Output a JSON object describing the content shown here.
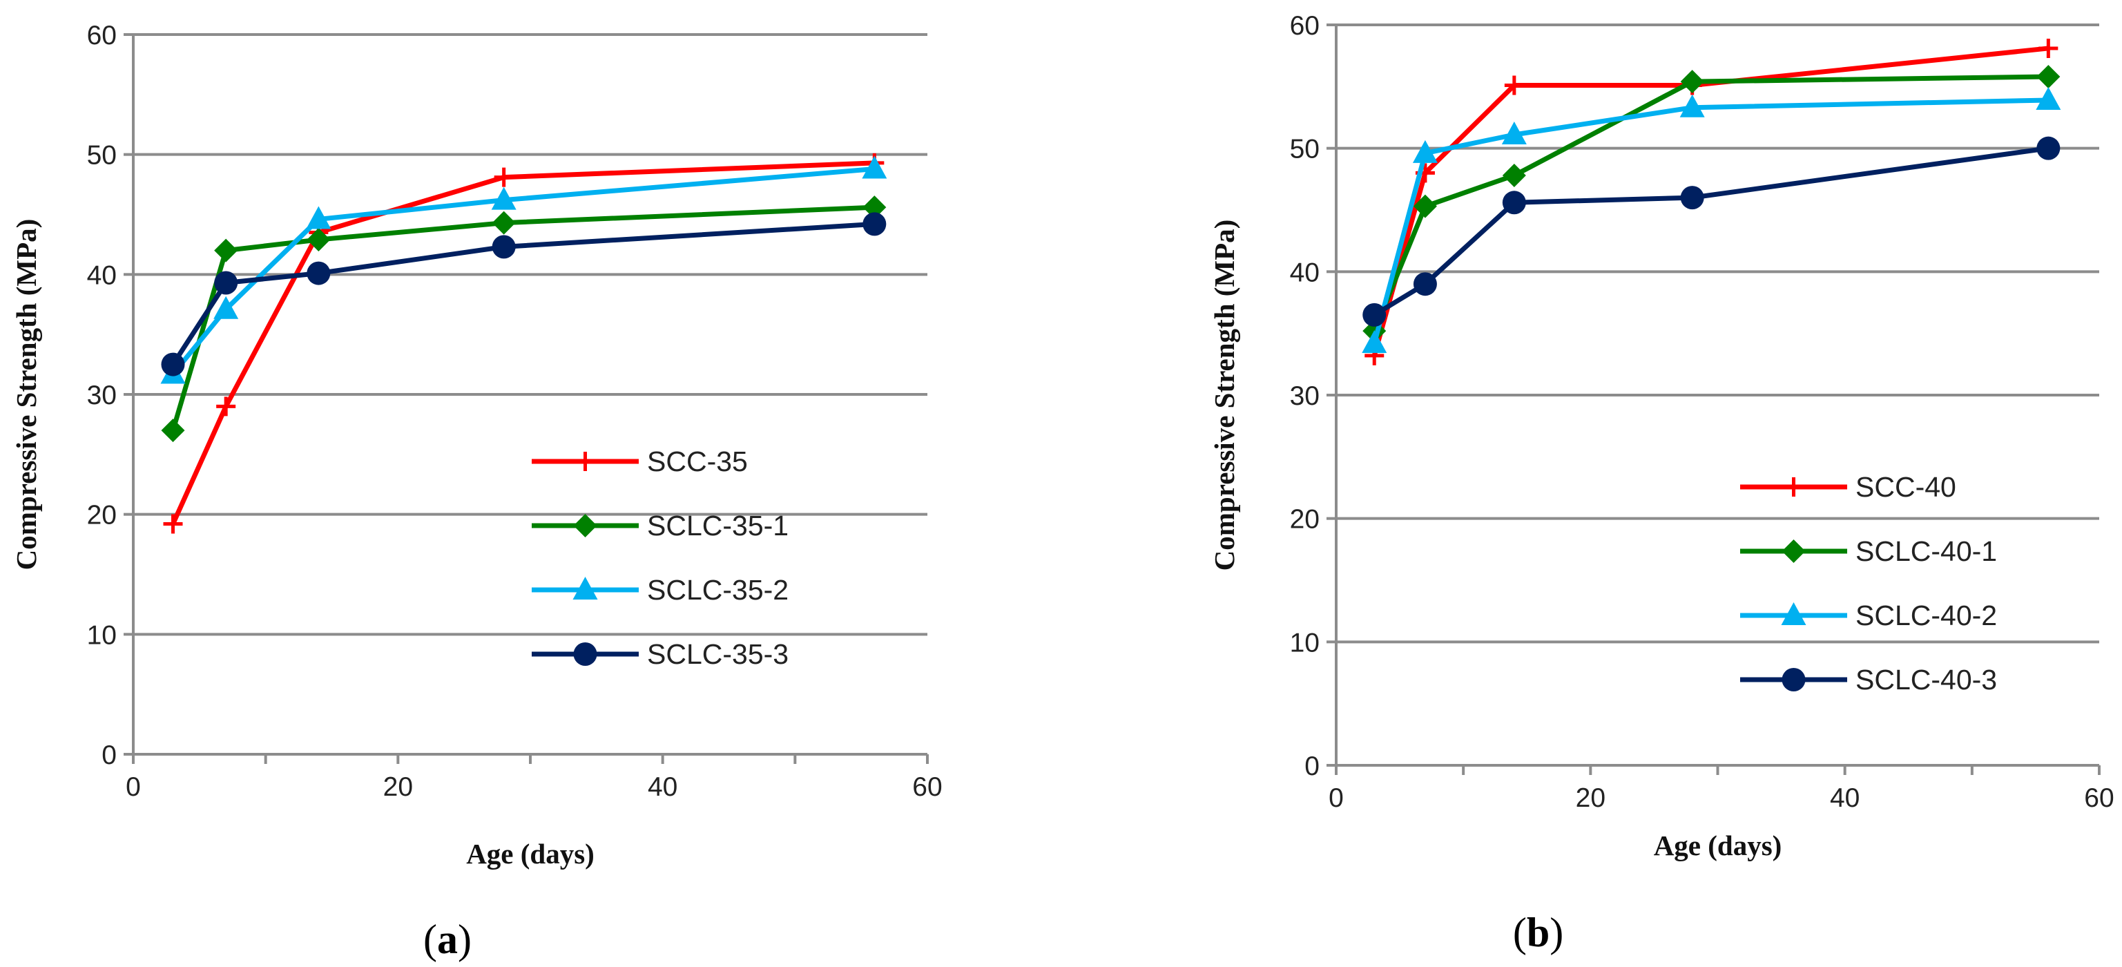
{
  "chart_data": [
    {
      "type": "line",
      "panel_label": "a",
      "title": "",
      "xlabel": "Age (days)",
      "ylabel": "Compressive Strength (MPa)",
      "xlim": [
        0,
        60
      ],
      "ylim": [
        0,
        60
      ],
      "xticks": [
        0,
        20,
        40,
        60
      ],
      "yticks": [
        0,
        10,
        20,
        30,
        40,
        50,
        60
      ],
      "x_minor_step": 10,
      "grid": "horizontal",
      "legend_position": "lower-right",
      "series": [
        {
          "name": "SCC-35",
          "color": "#ff0000",
          "marker": "plus",
          "x": [
            3,
            7,
            14,
            28,
            56
          ],
          "y": [
            19.2,
            29.0,
            43.5,
            48.1,
            49.3
          ]
        },
        {
          "name": "SCLC-35-1",
          "color": "#008000",
          "marker": "diamond",
          "x": [
            3,
            7,
            14,
            28,
            56
          ],
          "y": [
            27.0,
            42.0,
            42.9,
            44.3,
            45.6
          ]
        },
        {
          "name": "SCLC-35-2",
          "color": "#00b0f0",
          "marker": "triangle",
          "x": [
            3,
            7,
            14,
            28,
            56
          ],
          "y": [
            31.7,
            37.1,
            44.6,
            46.2,
            48.8
          ]
        },
        {
          "name": "SCLC-35-3",
          "color": "#002060",
          "marker": "circle",
          "x": [
            3,
            7,
            14,
            28,
            56
          ],
          "y": [
            32.5,
            39.3,
            40.1,
            42.3,
            44.2
          ]
        }
      ]
    },
    {
      "type": "line",
      "panel_label": "b",
      "title": "",
      "xlabel": "Age (days)",
      "ylabel": "Compressive Strength (MPa)",
      "xlim": [
        0,
        60
      ],
      "ylim": [
        0,
        60
      ],
      "xticks": [
        0,
        20,
        40,
        60
      ],
      "yticks": [
        0,
        10,
        20,
        30,
        40,
        50,
        60
      ],
      "x_minor_step": 10,
      "grid": "horizontal",
      "legend_position": "lower-right",
      "series": [
        {
          "name": "SCC-40",
          "color": "#ff0000",
          "marker": "plus",
          "x": [
            3,
            7,
            14,
            28,
            56
          ],
          "y": [
            33.2,
            48.0,
            55.1,
            55.1,
            58.1
          ]
        },
        {
          "name": "SCLC-40-1",
          "color": "#008000",
          "marker": "diamond",
          "x": [
            3,
            7,
            14,
            28,
            56
          ],
          "y": [
            35.2,
            45.3,
            47.8,
            55.4,
            55.8
          ]
        },
        {
          "name": "SCLC-40-2",
          "color": "#00b0f0",
          "marker": "triangle",
          "x": [
            3,
            7,
            14,
            28,
            56
          ],
          "y": [
            34.2,
            49.6,
            51.1,
            53.3,
            53.9
          ]
        },
        {
          "name": "SCLC-40-3",
          "color": "#002060",
          "marker": "circle",
          "x": [
            3,
            7,
            14,
            28,
            56
          ],
          "y": [
            36.5,
            39.0,
            45.6,
            46.0,
            50.0
          ]
        }
      ]
    }
  ]
}
